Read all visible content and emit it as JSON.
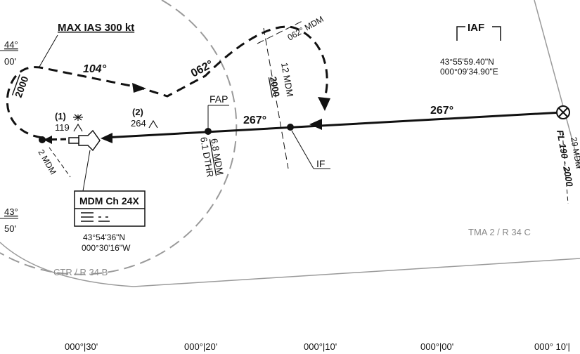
{
  "chart": {
    "max_ias": "MAX IAS 300 kt",
    "holding_out_course": "104°",
    "holding_in_course": "062°",
    "radial_label": "062° MDM",
    "holding_alt": "2000",
    "dme_12": "12 MDM",
    "alt_12": "2000",
    "final_course_1": "267°",
    "final_course_2": "267°",
    "fap": "FAP",
    "fap_dist_1": "6.8 MDM",
    "fap_dist_2": "6.1 DTHR",
    "iaf": "IAF",
    "iaf_lat": "43°55'59.40\"N",
    "iaf_lon": "000°09'34.90\"E",
    "if": "IF",
    "fl_alt": "FL 190 - 2000",
    "dme_29": "29 MDM",
    "obstacle_1_num": "(1)",
    "obstacle_1_alt": "119",
    "obstacle_2_num": "(2)",
    "obstacle_2_alt": "264",
    "dme_2": "2 MDM",
    "navaid_name": "MDM Ch 24X",
    "navaid_lat": "43°54'36\"N",
    "navaid_lon": "000°30'16\"W",
    "ctr": "CTR / R 34 B",
    "tma": "TMA 2 / R 34 C",
    "lat_44_deg": "44°",
    "lat_44_min": "00'",
    "lat_43_deg": "43°",
    "lat_43_min": "50'",
    "lon_labels": [
      "000°|30'",
      "000°|20'",
      "000°|10'",
      "000°|00'",
      "000° 10'|"
    ]
  },
  "colors": {
    "ink": "#111111",
    "boundary": "#9a9a9a"
  },
  "icons": [
    "navaid-dme-icon",
    "iaf-fix-icon",
    "obstacle-lighted-icon",
    "obstacle-icon"
  ]
}
